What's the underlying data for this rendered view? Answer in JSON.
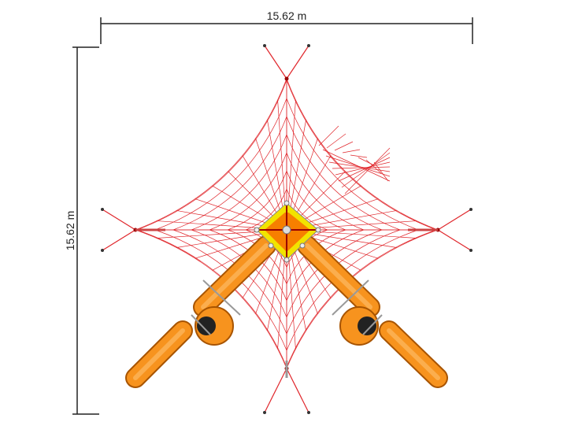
{
  "dimensions": {
    "width_label": "15.62 m",
    "height_label": "15.62 m"
  },
  "colors": {
    "net": "#e0262b",
    "tube": "#f7931e",
    "platform_yellow": "#f2e300",
    "platform_orange": "#f77f00",
    "dimension_line": "#222222"
  }
}
